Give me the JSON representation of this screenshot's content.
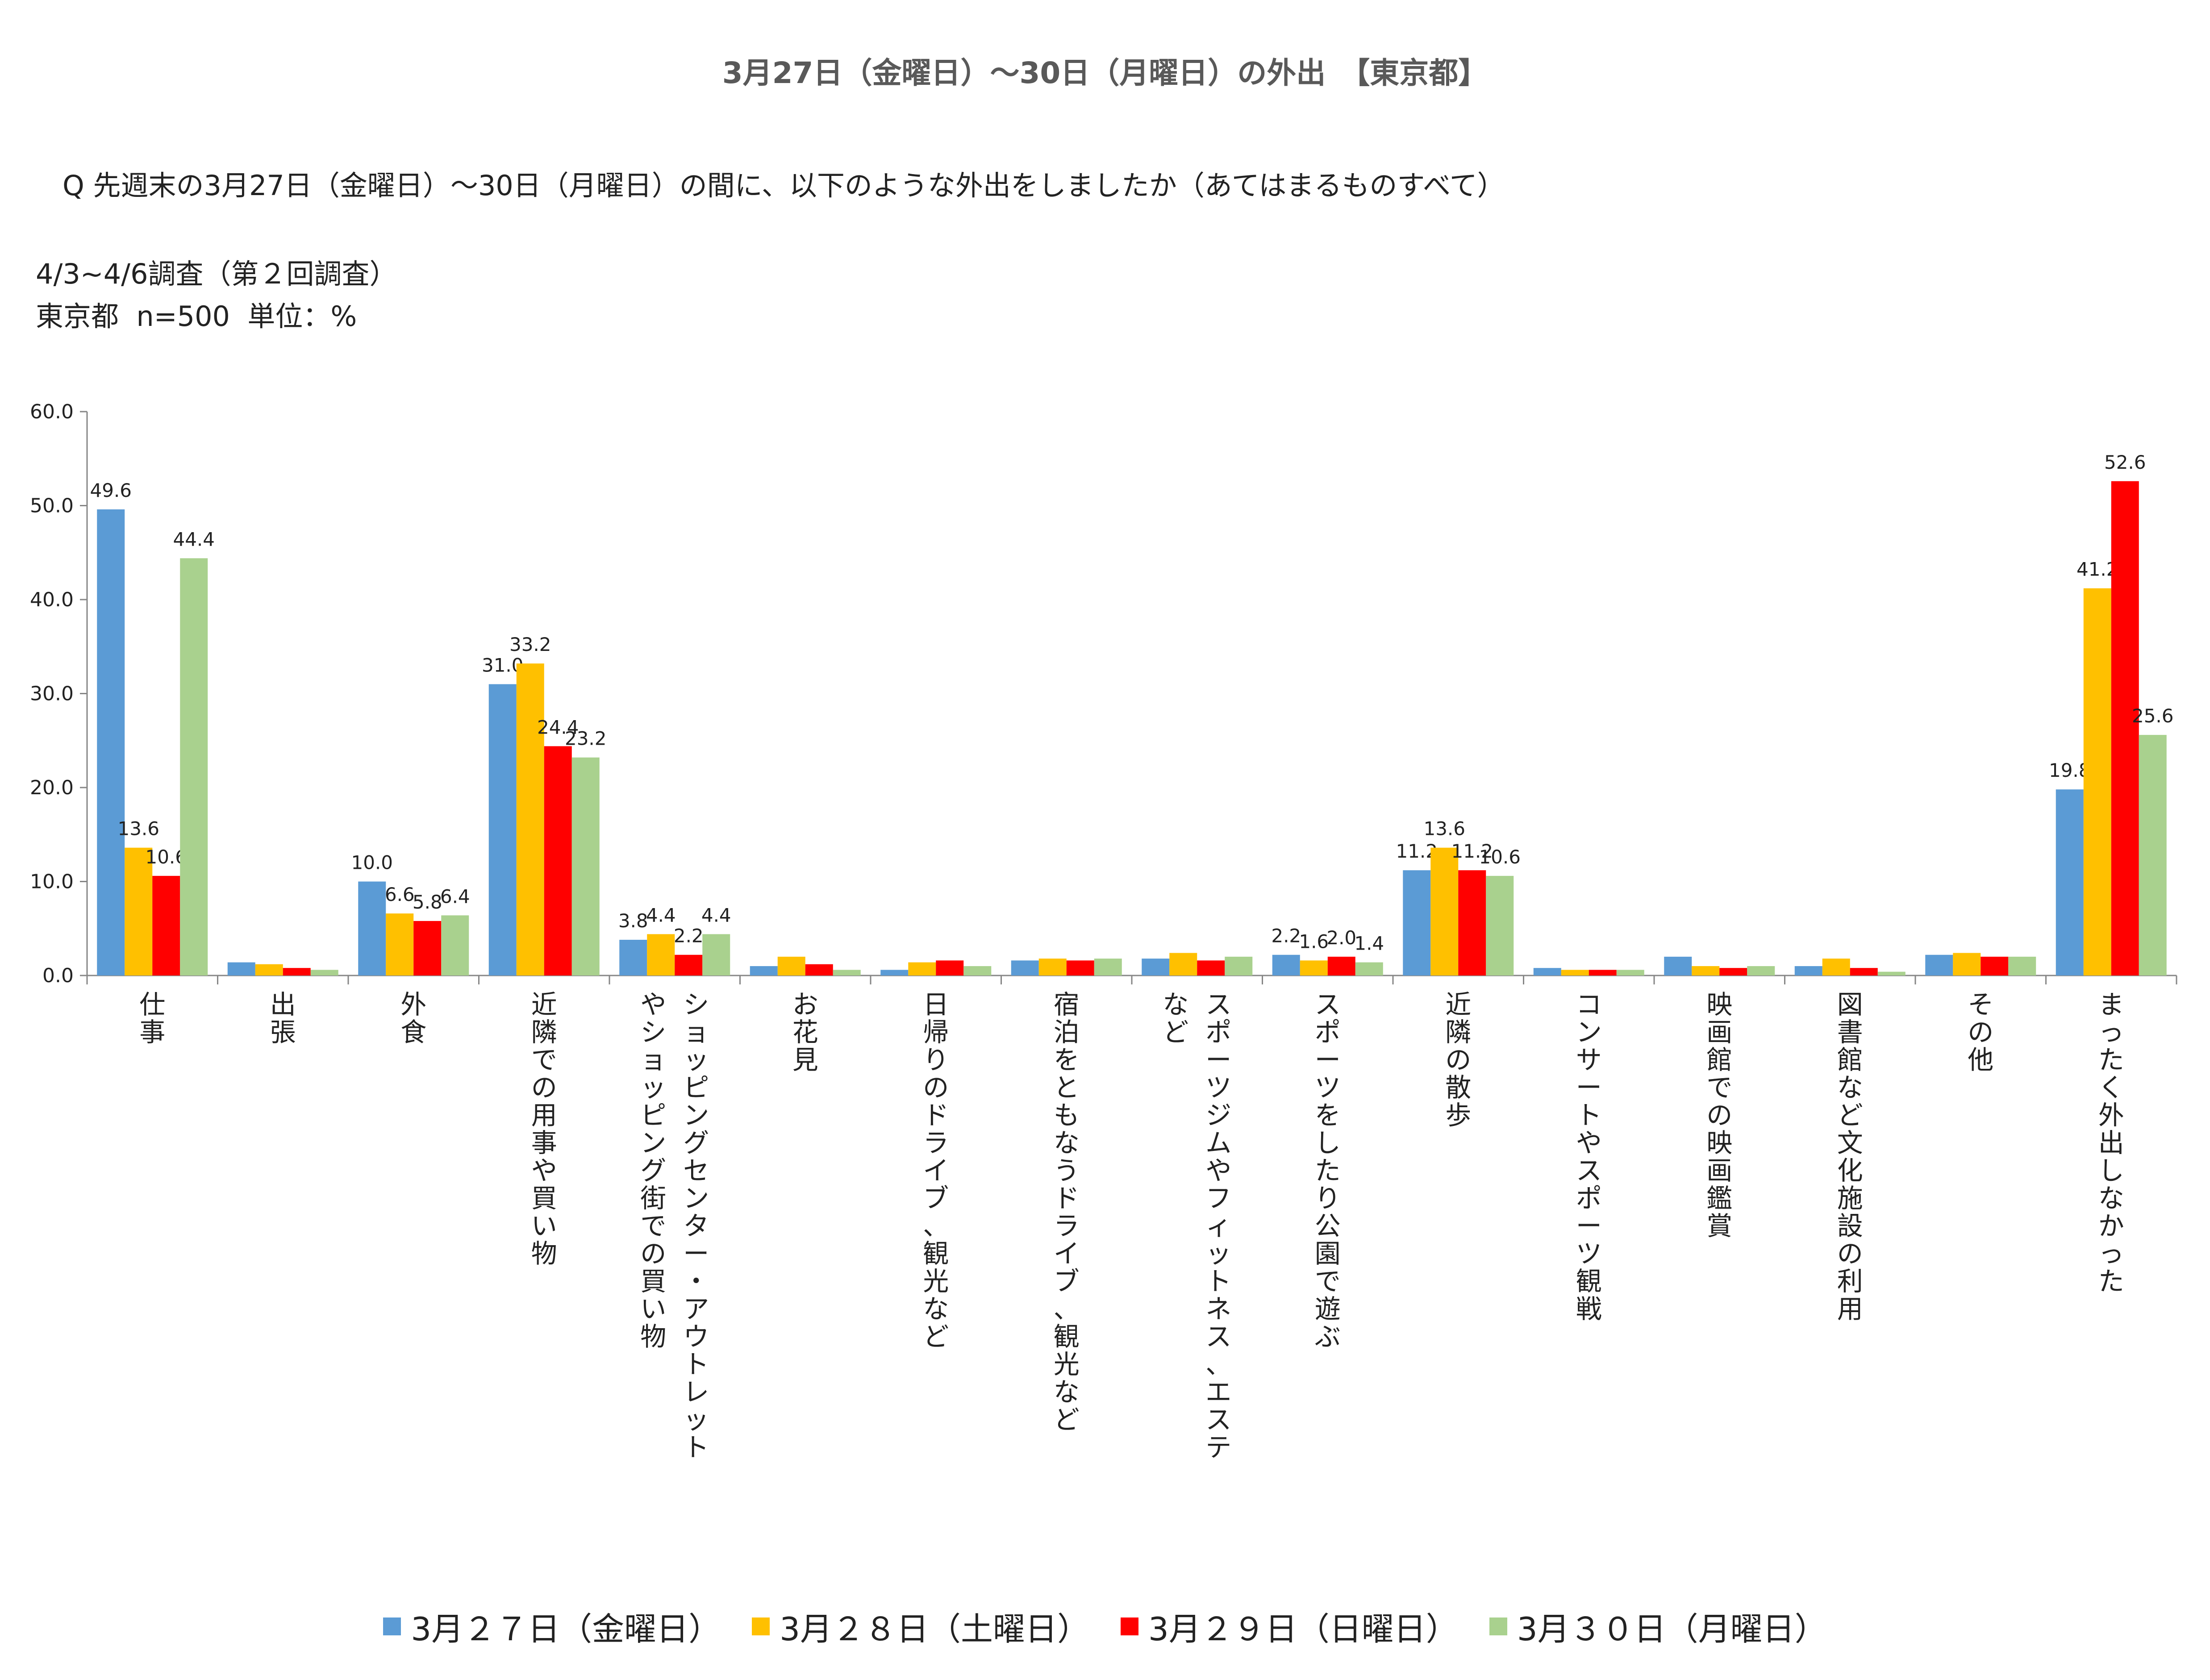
{
  "header": {
    "title": "3月27日（金曜日）～30日（月曜日）の外出　【東京都】",
    "question": "Q 先週末の3月27日（金曜日）～30日（月曜日）の間に、以下のような外出をしましたか（あてはまるものすべて）",
    "survey": "4/3~4/6調査（第２回調査）",
    "sample": "東京都  n=500  単位：%"
  },
  "chart_data": {
    "type": "bar",
    "title": "3月27日（金曜日）～30日（月曜日）の外出　【東京都】",
    "ylabel": "%",
    "ylim": [
      0,
      60
    ],
    "yticks": [
      "0.0",
      "10.0",
      "20.0",
      "30.0",
      "40.0",
      "50.0",
      "60.0"
    ],
    "grid": false,
    "legend_position": "bottom",
    "categories": [
      "仕事",
      "出張",
      "外食",
      "近隣での用事や買い物",
      "ショッピングセンター・アウトレットやショッピング街での買い物",
      "お花見",
      "日帰りのドライブ、観光など",
      "宿泊をともなうドライブ、観光など",
      "スポーツジムやフィットネス、エステなど",
      "スポーツをしたり公園で遊ぶ",
      "近隣の散歩",
      "コンサートやスポーツ観戦",
      "映画館での映画鑑賞",
      "図書館など文化施設の利用",
      "その他",
      "まったく外出しなかった"
    ],
    "category_lines": [
      [
        "仕事"
      ],
      [
        "出張"
      ],
      [
        "外食"
      ],
      [
        "近隣での用事や買い物"
      ],
      [
        "ショッピングセンター・アウトレット",
        "やショッピング街での買い物"
      ],
      [
        "お花見"
      ],
      [
        "日帰りのドライブ、観光など"
      ],
      [
        "宿泊をともなうドライブ、観光など"
      ],
      [
        "スポーツジムやフィットネス、エステ",
        "など"
      ],
      [
        "スポーツをしたり公園で遊ぶ"
      ],
      [
        "近隣の散歩"
      ],
      [
        "コンサートやスポーツ観戦"
      ],
      [
        "映画館での映画鑑賞"
      ],
      [
        "図書館など文化施設の利用"
      ],
      [
        "その他"
      ],
      [
        "まったく外出しなかった"
      ]
    ],
    "series": [
      {
        "name": "3月２７日（金曜日）",
        "color": "#5B9BD5",
        "values": [
          49.6,
          1.4,
          10.0,
          31.0,
          3.8,
          1.0,
          0.6,
          1.6,
          1.8,
          2.2,
          11.2,
          0.8,
          2.0,
          1.0,
          2.2,
          19.8
        ]
      },
      {
        "name": "3月２８日（土曜日）",
        "color": "#FFC000",
        "values": [
          13.6,
          1.2,
          6.6,
          33.2,
          4.4,
          2.0,
          1.4,
          1.8,
          2.4,
          1.6,
          13.6,
          0.6,
          1.0,
          1.8,
          2.4,
          41.2
        ]
      },
      {
        "name": "3月２９日（日曜日）",
        "color": "#FF0000",
        "values": [
          10.6,
          0.8,
          5.8,
          24.4,
          2.2,
          1.2,
          1.6,
          1.6,
          1.6,
          2.0,
          11.2,
          0.6,
          0.8,
          0.8,
          2.0,
          52.6
        ]
      },
      {
        "name": "3月３０日（月曜日）",
        "color": "#A9D18E",
        "values": [
          44.4,
          0.6,
          6.4,
          23.2,
          4.4,
          0.6,
          1.0,
          1.8,
          2.0,
          1.4,
          10.6,
          0.6,
          1.0,
          0.4,
          2.0,
          25.6
        ]
      }
    ],
    "data_labels": [
      [
        "49.6",
        "13.6",
        "10.6",
        "44.4"
      ],
      [
        null,
        null,
        null,
        null
      ],
      [
        "10.0",
        "6.6",
        "5.8",
        "6.4"
      ],
      [
        "31.0",
        "33.2",
        "24.4",
        "23.2"
      ],
      [
        "3.8",
        "4.4",
        "2.2",
        "4.4"
      ],
      [
        null,
        null,
        null,
        null
      ],
      [
        null,
        null,
        null,
        null
      ],
      [
        null,
        null,
        null,
        null
      ],
      [
        null,
        null,
        null,
        null
      ],
      [
        "2.2",
        "1.6",
        "2.0",
        "1.4"
      ],
      [
        "11.2",
        "13.6",
        "11.2",
        "10.6"
      ],
      [
        null,
        null,
        null,
        null
      ],
      [
        null,
        null,
        null,
        null
      ],
      [
        null,
        null,
        null,
        null
      ],
      [
        null,
        null,
        null,
        null
      ],
      [
        "19.8",
        "41.2",
        "52.6",
        "25.6"
      ]
    ]
  }
}
